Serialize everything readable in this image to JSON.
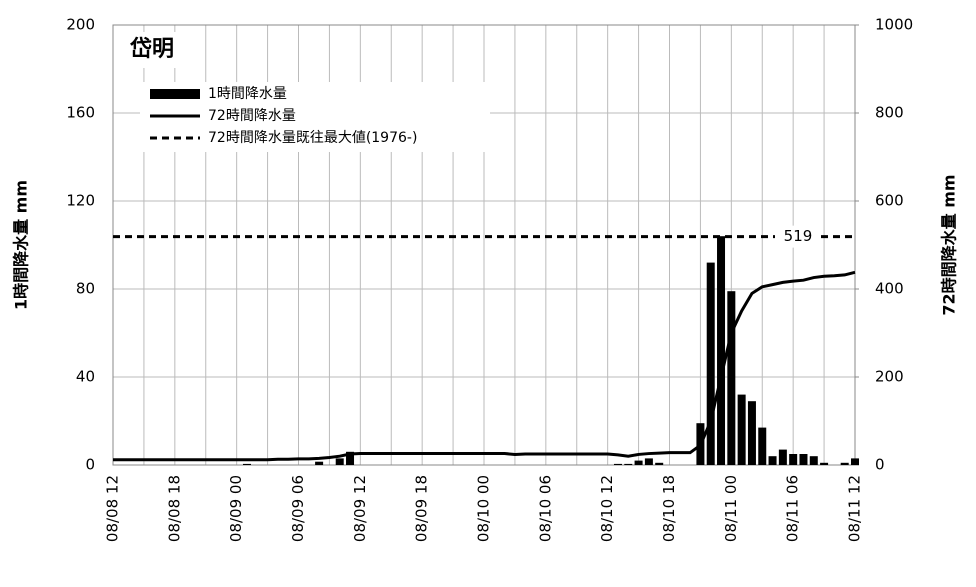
{
  "chart_data": {
    "type": "bar_line",
    "title": "岱明",
    "y_label": "1時間降水量 mm",
    "y2_label": "72時間降水量 mm",
    "categories": [
      "08/08 12",
      null,
      null,
      null,
      null,
      null,
      "08/08 18",
      null,
      null,
      null,
      null,
      null,
      "08/09 00",
      null,
      null,
      null,
      null,
      null,
      "08/09 06",
      null,
      null,
      null,
      null,
      null,
      "08/09 12",
      null,
      null,
      null,
      null,
      null,
      "08/09 18",
      null,
      null,
      null,
      null,
      null,
      "08/10 00",
      null,
      null,
      null,
      null,
      null,
      "08/10 06",
      null,
      null,
      null,
      null,
      null,
      "08/10 12",
      null,
      null,
      null,
      null,
      null,
      "08/10 18",
      null,
      null,
      null,
      null,
      null,
      "08/11 00",
      null,
      null,
      null,
      null,
      null,
      "08/11 06",
      null,
      null,
      null,
      null,
      null,
      "08/11 12"
    ],
    "series": [
      {
        "name": "1時間降水量",
        "type": "bar",
        "color": "#000000",
        "values": [
          0,
          0,
          0,
          0,
          0,
          0,
          0,
          0,
          0,
          0,
          0,
          0,
          0,
          0.5,
          0,
          0,
          0,
          0,
          0,
          0,
          1.5,
          0,
          3,
          6,
          0,
          0,
          0,
          0,
          0,
          0,
          0,
          0,
          0,
          0,
          0,
          0,
          0,
          0,
          0,
          0,
          0,
          0,
          0,
          0,
          0,
          0,
          0,
          0,
          0,
          0.5,
          0.5,
          2,
          3,
          1,
          0,
          0,
          0,
          19,
          92,
          104,
          79,
          32,
          29,
          17,
          4,
          7,
          5,
          5,
          4,
          1,
          0,
          1,
          3
        ]
      },
      {
        "name": "72時間降水量",
        "type": "line",
        "axis": "y2",
        "color": "#000000",
        "values": [
          12,
          12,
          12,
          12,
          12,
          12,
          12,
          12,
          12,
          12,
          12,
          12,
          12,
          12,
          12,
          12,
          13,
          13,
          14,
          14,
          15,
          17,
          20,
          25,
          26,
          26,
          26,
          26,
          26,
          26,
          26,
          26,
          26,
          26,
          26,
          26,
          26,
          26,
          26,
          24,
          25,
          25,
          25,
          25,
          25,
          25,
          25,
          25,
          25,
          23,
          20,
          24,
          26,
          27,
          28,
          28,
          28,
          45,
          100,
          200,
          300,
          350,
          390,
          405,
          410,
          415,
          418,
          420,
          426,
          429,
          430,
          432,
          438
        ]
      },
      {
        "name": "72時間降水量既往最大値(1976-)",
        "type": "reference",
        "axis": "y2",
        "color": "#000000",
        "value": 519
      }
    ],
    "ylim": [
      0,
      200
    ],
    "yticks": [
      0,
      40,
      80,
      120,
      160,
      200
    ],
    "y2lim": [
      0,
      1000
    ],
    "y2ticks": [
      0,
      200,
      400,
      600,
      800,
      1000
    ],
    "grid": true
  }
}
